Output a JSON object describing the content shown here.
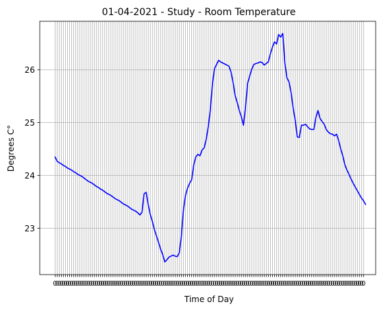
{
  "chart_data": {
    "type": "line",
    "title": "01-04-2021 - Study - Room Temperature",
    "xlabel": "Time of Day",
    "ylabel": "Degrees C°",
    "ylim": [
      22.12,
      26.92
    ],
    "yticks": [
      23,
      24,
      25,
      26
    ],
    "grid": true,
    "x_tick_count": 150,
    "x_tick_text": "0",
    "series": [
      {
        "color": "#0000ff",
        "values": [
          24.35,
          24.27,
          24.24,
          24.22,
          24.19,
          24.17,
          24.14,
          24.12,
          24.1,
          24.07,
          24.05,
          24.02,
          24,
          23.98,
          23.95,
          23.92,
          23.89,
          23.87,
          23.85,
          23.82,
          23.79,
          23.77,
          23.74,
          23.72,
          23.69,
          23.66,
          23.64,
          23.62,
          23.59,
          23.56,
          23.54,
          23.52,
          23.49,
          23.46,
          23.44,
          23.42,
          23.39,
          23.36,
          23.34,
          23.32,
          23.29,
          23.25,
          23.3,
          23.65,
          23.68,
          23.45,
          23.26,
          23.13,
          22.97,
          22.85,
          22.73,
          22.6,
          22.5,
          22.36,
          22.4,
          22.45,
          22.47,
          22.49,
          22.47,
          22.46,
          22.53,
          22.84,
          23.34,
          23.62,
          23.76,
          23.85,
          23.92,
          24.2,
          24.35,
          24.4,
          24.37,
          24.48,
          24.52,
          24.68,
          24.92,
          25.24,
          25.72,
          26.02,
          26.1,
          26.18,
          26.15,
          26.13,
          26.11,
          26.09,
          26.07,
          25.96,
          25.76,
          25.51,
          25.38,
          25.23,
          25.11,
          24.95,
          25.29,
          25.74,
          25.88,
          26.01,
          26.1,
          26.12,
          26.13,
          26.15,
          26.14,
          26.09,
          26.12,
          26.15,
          26.3,
          26.43,
          26.53,
          26.49,
          26.67,
          26.62,
          26.69,
          26.13,
          25.85,
          25.77,
          25.57,
          25.28,
          25.05,
          24.73,
          24.72,
          24.95,
          24.95,
          24.97,
          24.92,
          24.88,
          24.87,
          24.87,
          25.1,
          25.23,
          25.08,
          25.02,
          24.97,
          24.87,
          24.82,
          24.79,
          24.78,
          24.75,
          24.78,
          24.66,
          24.5,
          24.37,
          24.2,
          24.1,
          24.02,
          23.93,
          23.85,
          23.78,
          23.71,
          23.64,
          23.57,
          23.52,
          23.45
        ]
      }
    ]
  }
}
